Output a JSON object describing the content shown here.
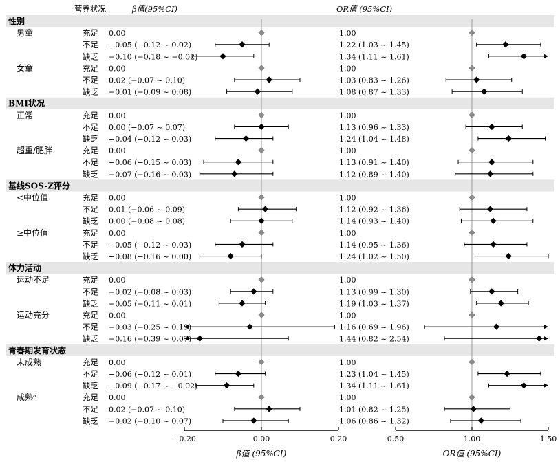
{
  "headers": {
    "nutrition_status": "营养状况",
    "beta_ci": "β值(95%CI)",
    "or_ci": "OR值 (95%CI)"
  },
  "axes": {
    "beta_xlabel": "β值 (95%CI)",
    "or_xlabel": "OR值 (95%CI)"
  },
  "chart_data": {
    "type": "forest",
    "beta": {
      "xlim": [
        -0.2,
        0.2
      ],
      "reference": 0.0,
      "ticks": [
        -0.2,
        0.0,
        0.2
      ],
      "tick_labels": [
        "−0.20",
        "0.00",
        "0.20"
      ]
    },
    "or": {
      "xlim": [
        0.5,
        1.5
      ],
      "reference": 1.0,
      "ticks": [
        0.5,
        1.0,
        1.5
      ],
      "tick_labels": [
        "0.50",
        "1.00",
        "1.50"
      ]
    },
    "sections": [
      {
        "title": "性别",
        "groups": [
          {
            "label": "男童",
            "rows": [
              {
                "level": "充足",
                "beta_text": "0.00",
                "beta": 0.0,
                "beta_lo": 0.0,
                "beta_hi": 0.0,
                "or_text": "1.00",
                "or": 1.0,
                "or_lo": 1.0,
                "or_hi": 1.0,
                "ref": true
              },
              {
                "level": "不足",
                "beta_text": "−0.05 (−0.12 ~ 0.02)",
                "beta": -0.05,
                "beta_lo": -0.12,
                "beta_hi": 0.02,
                "or_text": "1.22 (1.03 ~ 1.45)",
                "or": 1.22,
                "or_lo": 1.03,
                "or_hi": 1.45
              },
              {
                "level": "缺乏",
                "beta_text": "−0.10 (−0.18 ~ −0.02)",
                "beta": -0.1,
                "beta_lo": -0.18,
                "beta_hi": -0.02,
                "or_text": "1.34 (1.11 ~ 1.61)",
                "or": 1.34,
                "or_lo": 1.11,
                "or_hi": 1.61
              }
            ]
          },
          {
            "label": "女童",
            "rows": [
              {
                "level": "充足",
                "beta_text": "0.00",
                "beta": 0.0,
                "beta_lo": 0.0,
                "beta_hi": 0.0,
                "or_text": "1.00",
                "or": 1.0,
                "or_lo": 1.0,
                "or_hi": 1.0,
                "ref": true
              },
              {
                "level": "不足",
                "beta_text": "0.02 (−0.07 ~ 0.10)",
                "beta": 0.02,
                "beta_lo": -0.07,
                "beta_hi": 0.1,
                "or_text": "1.03 (0.83 ~ 1.26)",
                "or": 1.03,
                "or_lo": 0.83,
                "or_hi": 1.26
              },
              {
                "level": "缺乏",
                "beta_text": "−0.01 (−0.09 ~ 0.08)",
                "beta": -0.01,
                "beta_lo": -0.09,
                "beta_hi": 0.08,
                "or_text": "1.08 (0.87 ~ 1.33)",
                "or": 1.08,
                "or_lo": 0.87,
                "or_hi": 1.33
              }
            ]
          }
        ]
      },
      {
        "title": "BMI状况",
        "groups": [
          {
            "label": "正常",
            "rows": [
              {
                "level": "充足",
                "beta_text": "0.00",
                "beta": 0.0,
                "beta_lo": 0.0,
                "beta_hi": 0.0,
                "or_text": "1.00",
                "or": 1.0,
                "or_lo": 1.0,
                "or_hi": 1.0,
                "ref": true
              },
              {
                "level": "不足",
                "beta_text": "0.00 (−0.07 ~ 0.07)",
                "beta": 0.0,
                "beta_lo": -0.07,
                "beta_hi": 0.07,
                "or_text": "1.13 (0.96 ~ 1.33)",
                "or": 1.13,
                "or_lo": 0.96,
                "or_hi": 1.33
              },
              {
                "level": "缺乏",
                "beta_text": "−0.04 (−0.12 ~ 0.03)",
                "beta": -0.04,
                "beta_lo": -0.12,
                "beta_hi": 0.03,
                "or_text": "1.24 (1.04 ~ 1.48)",
                "or": 1.24,
                "or_lo": 1.04,
                "or_hi": 1.48
              }
            ]
          },
          {
            "label": "超重/肥胖",
            "rows": [
              {
                "level": "充足",
                "beta_text": "0.00",
                "beta": 0.0,
                "beta_lo": 0.0,
                "beta_hi": 0.0,
                "or_text": "1.00",
                "or": 1.0,
                "or_lo": 1.0,
                "or_hi": 1.0,
                "ref": true
              },
              {
                "level": "不足",
                "beta_text": "−0.06 (−0.15 ~ 0.03)",
                "beta": -0.06,
                "beta_lo": -0.15,
                "beta_hi": 0.03,
                "or_text": "1.13 (0.91 ~ 1.40)",
                "or": 1.13,
                "or_lo": 0.91,
                "or_hi": 1.4
              },
              {
                "level": "缺乏",
                "beta_text": "−0.07 (−0.16 ~ 0.03)",
                "beta": -0.07,
                "beta_lo": -0.16,
                "beta_hi": 0.03,
                "or_text": "1.12 (0.89 ~ 1.40)",
                "or": 1.12,
                "or_lo": 0.89,
                "or_hi": 1.4
              }
            ]
          }
        ]
      },
      {
        "title": "基线SOS-Z评分",
        "groups": [
          {
            "label": "<中位值",
            "rows": [
              {
                "level": "充足",
                "beta_text": "0.00",
                "beta": 0.0,
                "beta_lo": 0.0,
                "beta_hi": 0.0,
                "or_text": "1.00",
                "or": 1.0,
                "or_lo": 1.0,
                "or_hi": 1.0,
                "ref": true
              },
              {
                "level": "不足",
                "beta_text": "0.01 (−0.06 ~ 0.09)",
                "beta": 0.01,
                "beta_lo": -0.06,
                "beta_hi": 0.09,
                "or_text": "1.12 (0.92 ~ 1.36)",
                "or": 1.12,
                "or_lo": 0.92,
                "or_hi": 1.36
              },
              {
                "level": "缺乏",
                "beta_text": "0.00 (−0.08 ~ 0.08)",
                "beta": 0.0,
                "beta_lo": -0.08,
                "beta_hi": 0.08,
                "or_text": "1.14 (0.93 ~ 1.40)",
                "or": 1.14,
                "or_lo": 0.93,
                "or_hi": 1.4
              }
            ]
          },
          {
            "label": "≥中位值",
            "rows": [
              {
                "level": "充足",
                "beta_text": "0.00",
                "beta": 0.0,
                "beta_lo": 0.0,
                "beta_hi": 0.0,
                "or_text": "1.00",
                "or": 1.0,
                "or_lo": 1.0,
                "or_hi": 1.0,
                "ref": true
              },
              {
                "level": "不足",
                "beta_text": "−0.05 (−0.12 ~ 0.03)",
                "beta": -0.05,
                "beta_lo": -0.12,
                "beta_hi": 0.03,
                "or_text": "1.14 (0.95 ~ 1.36)",
                "or": 1.14,
                "or_lo": 0.95,
                "or_hi": 1.36
              },
              {
                "level": "缺乏",
                "beta_text": "−0.08 (−0.16 ~ 0.00)",
                "beta": -0.08,
                "beta_lo": -0.16,
                "beta_hi": 0.0,
                "or_text": "1.24 (1.02 ~ 1.50)",
                "or": 1.24,
                "or_lo": 1.02,
                "or_hi": 1.5
              }
            ]
          }
        ]
      },
      {
        "title": "体力活动",
        "groups": [
          {
            "label": "运动不足",
            "rows": [
              {
                "level": "充足",
                "beta_text": "0.00",
                "beta": 0.0,
                "beta_lo": 0.0,
                "beta_hi": 0.0,
                "or_text": "1.00",
                "or": 1.0,
                "or_lo": 1.0,
                "or_hi": 1.0,
                "ref": true
              },
              {
                "level": "不足",
                "beta_text": "−0.02 (−0.08 ~ 0.03)",
                "beta": -0.02,
                "beta_lo": -0.08,
                "beta_hi": 0.03,
                "or_text": "1.13 (0.99 ~ 1.30)",
                "or": 1.13,
                "or_lo": 0.99,
                "or_hi": 1.3
              },
              {
                "level": "缺乏",
                "beta_text": "−0.05 (−0.11 ~ 0.01)",
                "beta": -0.05,
                "beta_lo": -0.11,
                "beta_hi": 0.01,
                "or_text": "1.19 (1.03 ~ 1.37)",
                "or": 1.19,
                "or_lo": 1.03,
                "or_hi": 1.37
              }
            ]
          },
          {
            "label": "运动充分",
            "rows": [
              {
                "level": "充足",
                "beta_text": "0.00",
                "beta": 0.0,
                "beta_lo": 0.0,
                "beta_hi": 0.0,
                "or_text": "1.00",
                "or": 1.0,
                "or_lo": 1.0,
                "or_hi": 1.0,
                "ref": true
              },
              {
                "level": "不足",
                "beta_text": "−0.03 (−0.25 ~ 0.19)",
                "beta": -0.03,
                "beta_lo": -0.25,
                "beta_hi": 0.19,
                "or_text": "1.16 (0.69 ~ 1.96)",
                "or": 1.16,
                "or_lo": 0.69,
                "or_hi": 1.96
              },
              {
                "level": "缺乏",
                "beta_text": "−0.16 (−0.39 ~ 0.07)",
                "beta": -0.16,
                "beta_lo": -0.39,
                "beta_hi": 0.07,
                "or_text": "1.44 (0.82 ~ 2.54)",
                "or": 1.44,
                "or_lo": 0.82,
                "or_hi": 2.54
              }
            ]
          }
        ]
      },
      {
        "title": "青春期发育状态",
        "groups": [
          {
            "label": "未成熟",
            "rows": [
              {
                "level": "充足",
                "beta_text": "0.00",
                "beta": 0.0,
                "beta_lo": 0.0,
                "beta_hi": 0.0,
                "or_text": "1.00",
                "or": 1.0,
                "or_lo": 1.0,
                "or_hi": 1.0,
                "ref": true
              },
              {
                "level": "不足",
                "beta_text": "−0.06 (−0.12 ~ 0.01)",
                "beta": -0.06,
                "beta_lo": -0.12,
                "beta_hi": 0.01,
                "or_text": "1.23 (1.04 ~ 1.45)",
                "or": 1.23,
                "or_lo": 1.04,
                "or_hi": 1.45
              },
              {
                "level": "缺乏",
                "beta_text": "−0.09 (−0.17 ~ −0.02)",
                "beta": -0.09,
                "beta_lo": -0.17,
                "beta_hi": -0.02,
                "or_text": "1.34 (1.11 ~ 1.61)",
                "or": 1.34,
                "or_lo": 1.11,
                "or_hi": 1.61
              }
            ]
          },
          {
            "label": "成熟ᵃ",
            "rows": [
              {
                "level": "充足",
                "beta_text": "0.00",
                "beta": 0.0,
                "beta_lo": 0.0,
                "beta_hi": 0.0,
                "or_text": "1.00",
                "or": 1.0,
                "or_lo": 1.0,
                "or_hi": 1.0,
                "ref": true
              },
              {
                "level": "不足",
                "beta_text": "0.02 (−0.07 ~ 0.10)",
                "beta": 0.02,
                "beta_lo": -0.07,
                "beta_hi": 0.1,
                "or_text": "1.01 (0.82 ~ 1.25)",
                "or": 1.01,
                "or_lo": 0.82,
                "or_hi": 1.25
              },
              {
                "level": "缺乏",
                "beta_text": "−0.02 (−0.10 ~ 0.07)",
                "beta": -0.02,
                "beta_lo": -0.1,
                "beta_hi": 0.07,
                "or_text": "1.06 (0.86 ~ 1.32)",
                "or": 1.06,
                "or_lo": 0.86,
                "or_hi": 1.32
              }
            ]
          }
        ]
      }
    ]
  }
}
